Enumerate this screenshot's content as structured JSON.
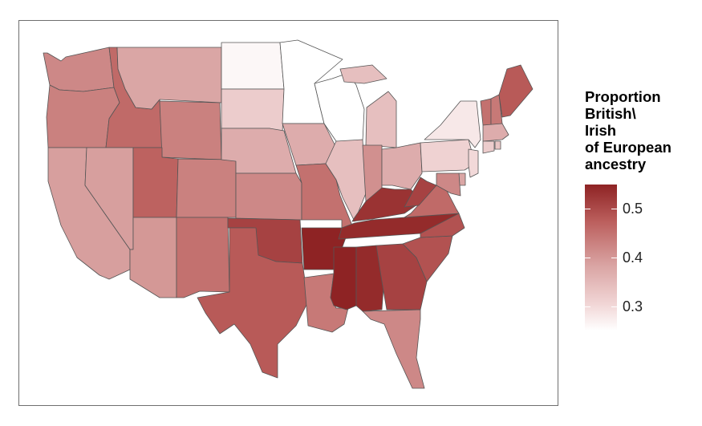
{
  "legend": {
    "title_lines": [
      "Proportion",
      "British\\",
      "Irish",
      "of European",
      "ancestry"
    ],
    "ticks": [
      {
        "label": "0.5",
        "value": 0.5
      },
      {
        "label": "0.4",
        "value": 0.4
      },
      {
        "label": "0.3",
        "value": 0.3
      }
    ],
    "range": [
      0.25,
      0.55
    ],
    "colors": {
      "low": "#ffffff",
      "mid_low": "#f1d6d6",
      "mid": "#d9a3a2",
      "mid_high": "#bb5e5c",
      "high": "#8e2324"
    }
  },
  "states": [
    {
      "name": "Washington",
      "value": 0.42
    },
    {
      "name": "Oregon",
      "value": 0.43
    },
    {
      "name": "California",
      "value": 0.39
    },
    {
      "name": "Idaho",
      "value": 0.46
    },
    {
      "name": "Nevada",
      "value": 0.39
    },
    {
      "name": "Montana",
      "value": 0.38
    },
    {
      "name": "Wyoming",
      "value": 0.43
    },
    {
      "name": "Utah",
      "value": 0.47
    },
    {
      "name": "Arizona",
      "value": 0.4
    },
    {
      "name": "Colorado",
      "value": 0.43
    },
    {
      "name": "New Mexico",
      "value": 0.45
    },
    {
      "name": "North Dakota",
      "value": 0.26
    },
    {
      "name": "South Dakota",
      "value": 0.32
    },
    {
      "name": "Nebraska",
      "value": 0.37
    },
    {
      "name": "Kansas",
      "value": 0.42
    },
    {
      "name": "Oklahoma",
      "value": 0.51
    },
    {
      "name": "Texas",
      "value": 0.48
    },
    {
      "name": "Minnesota",
      "value": 0.25
    },
    {
      "name": "Iowa",
      "value": 0.37
    },
    {
      "name": "Missouri",
      "value": 0.45
    },
    {
      "name": "Arkansas",
      "value": 0.55
    },
    {
      "name": "Louisiana",
      "value": 0.44
    },
    {
      "name": "Wisconsin",
      "value": 0.25
    },
    {
      "name": "Illinois",
      "value": 0.34
    },
    {
      "name": "Michigan",
      "value": 0.34
    },
    {
      "name": "Indiana",
      "value": 0.41
    },
    {
      "name": "Ohio",
      "value": 0.37
    },
    {
      "name": "Kentucky",
      "value": 0.53
    },
    {
      "name": "Tennessee",
      "value": 0.54
    },
    {
      "name": "Mississippi",
      "value": 0.55
    },
    {
      "name": "Alabama",
      "value": 0.54
    },
    {
      "name": "Georgia",
      "value": 0.51
    },
    {
      "name": "Florida",
      "value": 0.42
    },
    {
      "name": "South Carolina",
      "value": 0.49
    },
    {
      "name": "North Carolina",
      "value": 0.49
    },
    {
      "name": "Virginia",
      "value": 0.46
    },
    {
      "name": "West Virginia",
      "value": 0.51
    },
    {
      "name": "Pennsylvania",
      "value": 0.31
    },
    {
      "name": "New York",
      "value": 0.28
    },
    {
      "name": "New Jersey",
      "value": 0.3
    },
    {
      "name": "Delaware",
      "value": 0.38
    },
    {
      "name": "Maryland",
      "value": 0.42
    },
    {
      "name": "Vermont",
      "value": 0.45
    },
    {
      "name": "New Hampshire",
      "value": 0.44
    },
    {
      "name": "Maine",
      "value": 0.48
    },
    {
      "name": "Massachusetts",
      "value": 0.37
    },
    {
      "name": "Connecticut",
      "value": 0.32
    },
    {
      "name": "Rhode Island",
      "value": 0.33
    }
  ]
}
